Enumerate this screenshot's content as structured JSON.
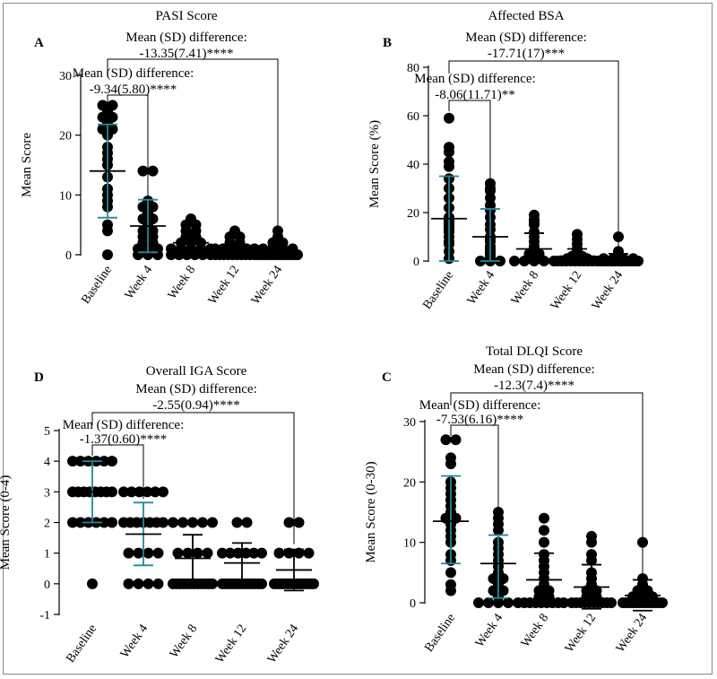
{
  "chart_data": [
    {
      "type": "scatter",
      "panel": "A",
      "title": "PASI Score",
      "ylabel": "Mean Score",
      "ylim": [
        0,
        30
      ],
      "yticks": [
        0,
        10,
        20,
        30
      ],
      "categories": [
        "Baseline",
        "Week 4",
        "Week 8",
        "Week 12",
        "Week 24"
      ],
      "points": [
        [
          25,
          25,
          24,
          23,
          23,
          22,
          21,
          21,
          20,
          18,
          17,
          16,
          15,
          13,
          11,
          10,
          9,
          8,
          5,
          4,
          0
        ],
        [
          14,
          14,
          9,
          8,
          8,
          7,
          6,
          6,
          5,
          4,
          4,
          3,
          3,
          2,
          2,
          1,
          1,
          1,
          0,
          0,
          0
        ],
        [
          6,
          5,
          5,
          4,
          4,
          3,
          3,
          2,
          2,
          2,
          1,
          1,
          1,
          1,
          1,
          0,
          0,
          0,
          0,
          0,
          0
        ],
        [
          4,
          3,
          3,
          2,
          2,
          1,
          1,
          1,
          1,
          1,
          1,
          0,
          0,
          0,
          0,
          0,
          0,
          0,
          0,
          0,
          0
        ],
        [
          4,
          3,
          2,
          2,
          1,
          1,
          1,
          1,
          0,
          0,
          0,
          0,
          0,
          0,
          0,
          0,
          0,
          0,
          0,
          0,
          0
        ]
      ],
      "mean": [
        14,
        4.8,
        2,
        1,
        0.6
      ],
      "sd_lower": [
        6.2,
        0.4,
        0.2,
        0,
        0
      ],
      "sd_upper": [
        21.8,
        9.2,
        3.8,
        2,
        1.6
      ],
      "accent_groups": [
        0,
        1
      ],
      "annotations": [
        {
          "line1": "Mean (SD) difference:",
          "line2": "-13.35(7.41)****",
          "from": 0,
          "to": 4
        },
        {
          "line1": "Mean (SD) difference:",
          "line2": "-9.34(5.80)****",
          "from": 0,
          "to": 1
        }
      ]
    },
    {
      "type": "scatter",
      "panel": "B",
      "title": "Affected BSA",
      "ylabel": "Mean Score (%)",
      "ylim": [
        0,
        80
      ],
      "yticks": [
        0,
        20,
        40,
        60,
        80
      ],
      "categories": [
        "Baseline",
        "Week 4",
        "Week 8",
        "Week 12",
        "Week 24"
      ],
      "points": [
        [
          59,
          47,
          45,
          41,
          39,
          34,
          30,
          26,
          22,
          18,
          17,
          16,
          15,
          14,
          13,
          12,
          10,
          8,
          7,
          4,
          1
        ],
        [
          32,
          30,
          29,
          26,
          23,
          21,
          18,
          15,
          13,
          10,
          9,
          8,
          6,
          5,
          4,
          3,
          2,
          1,
          0,
          0,
          0
        ],
        [
          19,
          17,
          16,
          15,
          12,
          10,
          8,
          6,
          5,
          4,
          3,
          3,
          2,
          2,
          1,
          1,
          0,
          0,
          0,
          0,
          0
        ],
        [
          11,
          9,
          7,
          5,
          4,
          3,
          2,
          2,
          1,
          1,
          1,
          0,
          0,
          0,
          0,
          0,
          0,
          0,
          0,
          0,
          0
        ],
        [
          10,
          4,
          3,
          2,
          1,
          1,
          1,
          1,
          0,
          0,
          0,
          0,
          0,
          0,
          0,
          0,
          0,
          0,
          0,
          0,
          0
        ]
      ],
      "mean": [
        17.5,
        10,
        5,
        2,
        1
      ],
      "sd_lower": [
        0,
        0,
        0,
        0,
        0
      ],
      "sd_upper": [
        35,
        21.5,
        11.5,
        5,
        3
      ],
      "accent_groups": [
        0,
        1
      ],
      "annotations": [
        {
          "line1": "Mean (SD) difference:",
          "line2": "-17.71(17)***",
          "from": 0,
          "to": 4
        },
        {
          "line1": "Mean (SD) difference:",
          "line2": "-8.06(11.71)**",
          "from": 0,
          "to": 1
        }
      ]
    },
    {
      "type": "scatter",
      "panel": "D",
      "title": "Overall IGA Score",
      "ylabel": "Mean Score (0-4)",
      "ylim": [
        -1,
        5
      ],
      "yticks": [
        -1,
        0,
        1,
        2,
        3,
        4,
        5
      ],
      "categories": [
        "Baseline",
        "Week 4",
        "Week 8",
        "Week 12",
        "Week 24"
      ],
      "points": [
        [
          4,
          4,
          4,
          4,
          4,
          4,
          3,
          3,
          3,
          3,
          3,
          3,
          3,
          3,
          2,
          2,
          2,
          2,
          2,
          2,
          0
        ],
        [
          3,
          3,
          3,
          3,
          3,
          3,
          2,
          2,
          2,
          2,
          2,
          2,
          2,
          1,
          1,
          1,
          1,
          0,
          0,
          0,
          0
        ],
        [
          2,
          2,
          2,
          2,
          2,
          1,
          1,
          1,
          1,
          0,
          0,
          0,
          0,
          0,
          0,
          0,
          0,
          0,
          0,
          0,
          0
        ],
        [
          2,
          2,
          1,
          1,
          1,
          1,
          1,
          1,
          0,
          0,
          0,
          0,
          0,
          0,
          0,
          0,
          0,
          0,
          0,
          0,
          0
        ],
        [
          2,
          2,
          1,
          1,
          1,
          1,
          0,
          0,
          0,
          0,
          0,
          0,
          0,
          0,
          0,
          0,
          0,
          0,
          0,
          0,
          0
        ]
      ],
      "mean": [
        3,
        1.62,
        0.83,
        0.68,
        0.45
      ],
      "sd_lower": [
        2,
        0.6,
        0,
        0,
        -0.22
      ],
      "sd_upper": [
        4,
        2.65,
        1.6,
        1.33,
        1.12
      ],
      "accent_groups": [
        0,
        1
      ],
      "annotations": [
        {
          "line1": "Mean (SD) difference:",
          "line2": "-2.55(0.94)****",
          "from": 0,
          "to": 4
        },
        {
          "line1": "Mean (SD) difference:",
          "line2": "-1.37(0.60)****",
          "from": 0,
          "to": 1
        }
      ]
    },
    {
      "type": "scatter",
      "panel": "C",
      "title": "Total DLQI Score",
      "ylabel": "Mean Score (0-30)",
      "ylim": [
        0,
        30
      ],
      "yticks": [
        0,
        10,
        20,
        30
      ],
      "categories": [
        "Baseline",
        "Week 4",
        "Week 8",
        "Week 12",
        "Week 24"
      ],
      "points": [
        [
          27,
          27,
          24,
          23,
          20,
          19,
          18,
          17,
          16,
          15,
          14,
          14,
          13,
          12,
          11,
          10,
          8,
          7,
          5,
          3,
          2
        ],
        [
          15,
          14,
          13,
          12,
          10,
          9,
          8,
          7,
          6,
          5,
          4,
          4,
          3,
          2,
          2,
          1,
          0,
          0,
          0,
          0,
          0
        ],
        [
          14,
          12,
          10,
          8,
          7,
          6,
          5,
          4,
          3,
          2,
          2,
          1,
          1,
          0,
          0,
          0,
          0,
          0,
          0,
          0,
          0
        ],
        [
          11,
          10,
          8,
          7,
          5,
          4,
          3,
          2,
          2,
          1,
          1,
          0,
          0,
          0,
          0,
          0,
          0,
          0,
          0,
          0,
          0
        ],
        [
          10,
          4,
          3,
          2,
          2,
          1,
          1,
          1,
          0,
          0,
          0,
          0,
          0,
          0,
          0,
          0,
          0,
          0,
          0,
          0,
          0
        ]
      ],
      "mean": [
        13.5,
        6.5,
        3.8,
        2.6,
        1.2
      ],
      "sd_lower": [
        6.5,
        0.8,
        0,
        -1,
        -1.3
      ],
      "sd_upper": [
        21,
        11.2,
        8.2,
        6.3,
        3.8
      ],
      "accent_groups": [
        0,
        1
      ],
      "annotations": [
        {
          "line1": "Mean (SD) difference:",
          "line2": "-12.3(7.4)****",
          "from": 0,
          "to": 4
        },
        {
          "line1": "Mean (SD) difference:",
          "line2": "-7.53(6.16)****",
          "from": 0,
          "to": 1
        }
      ]
    }
  ],
  "colors": {
    "accent": "#1f8a9b",
    "marker": "#000000",
    "axis": "#000000"
  }
}
